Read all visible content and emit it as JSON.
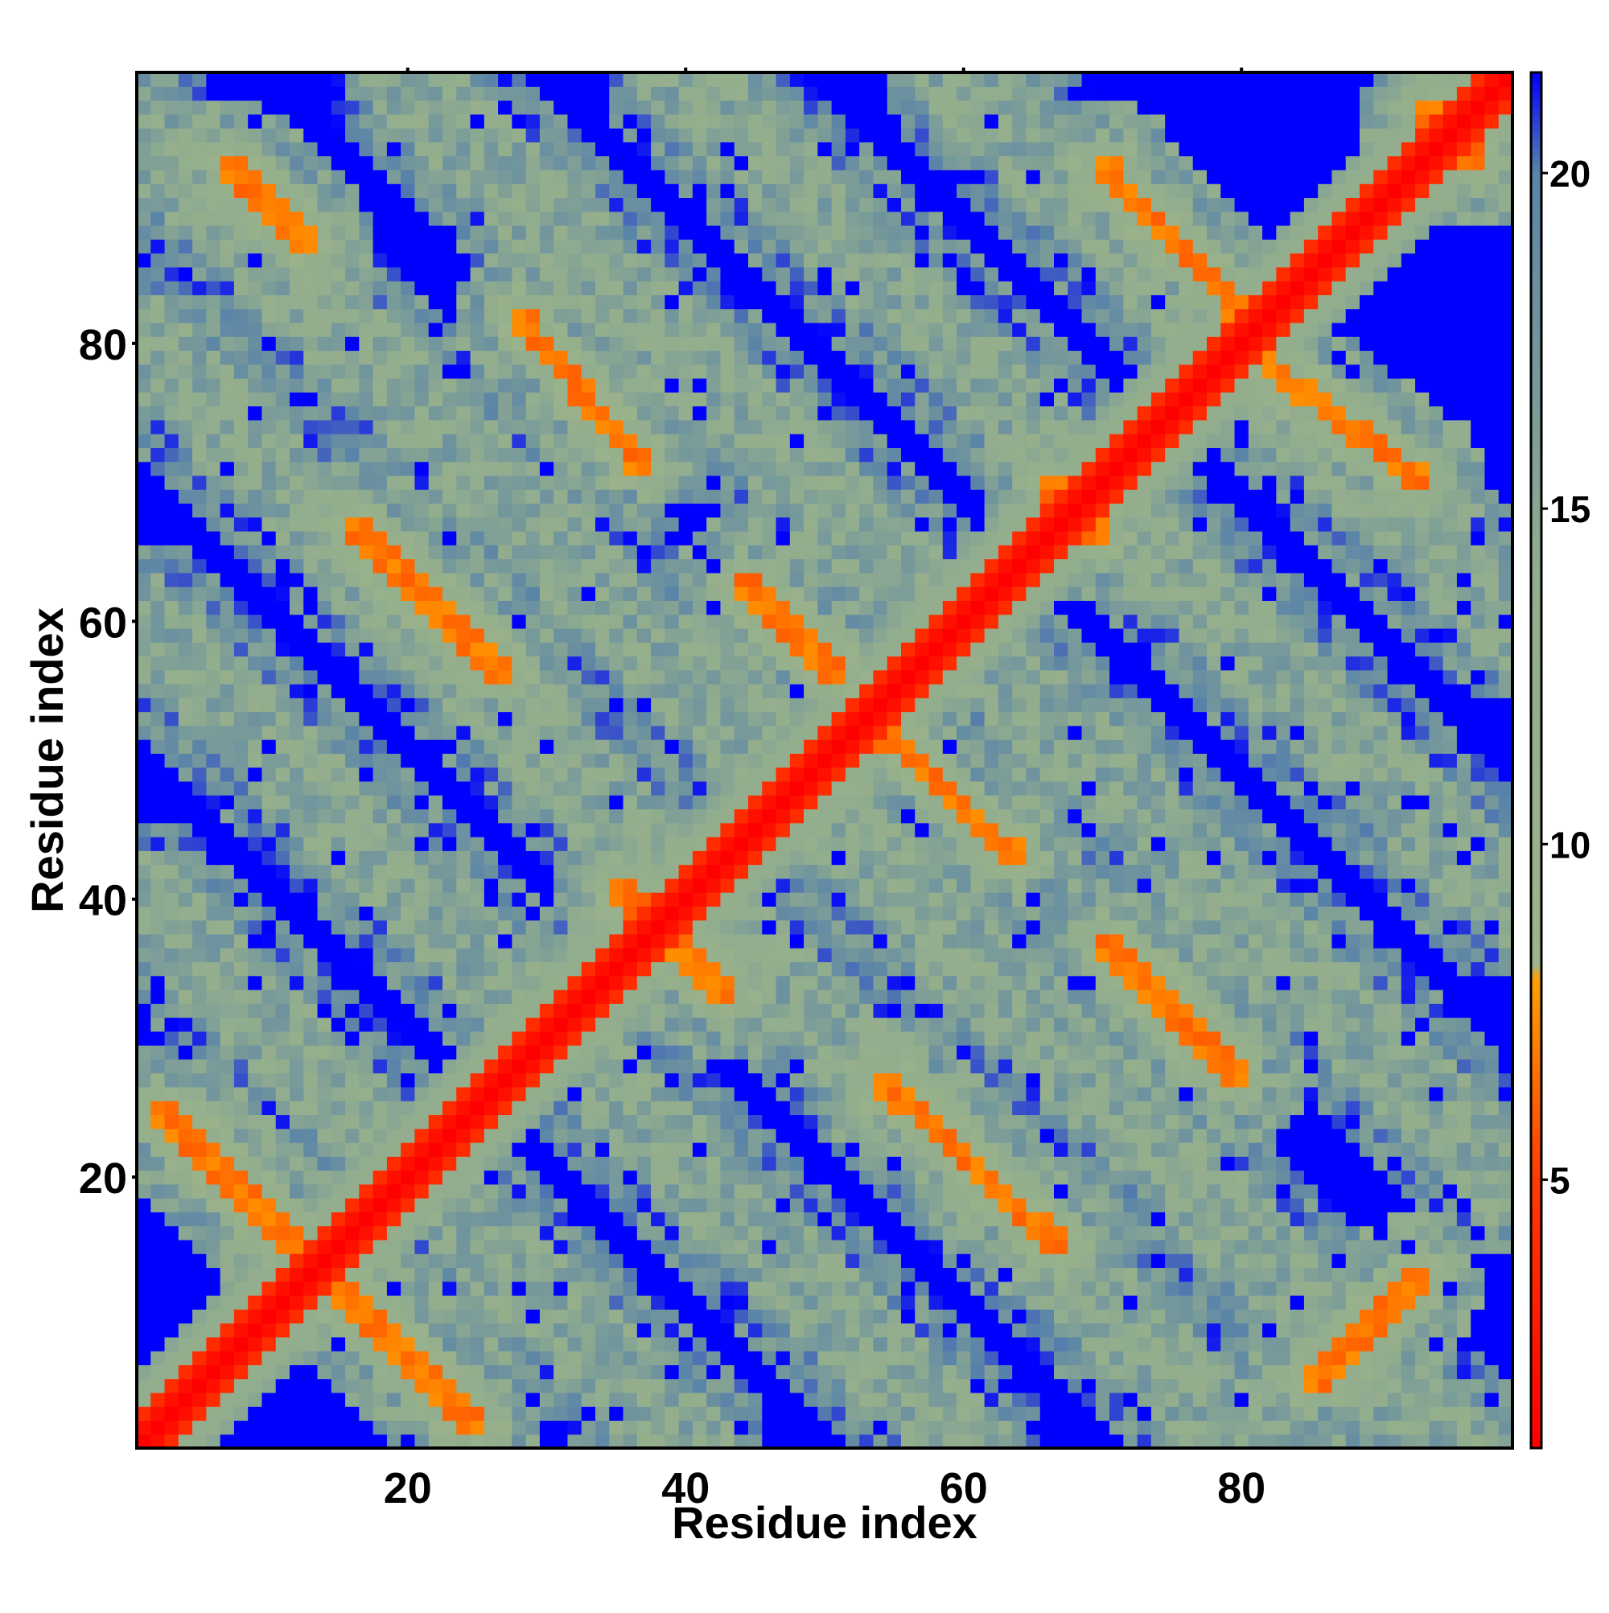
{
  "chart_data": {
    "type": "heatmap",
    "title": "",
    "xlabel": "Residue index",
    "ylabel": "Residue index",
    "x_range": [
      1,
      99
    ],
    "y_range": [
      1,
      99
    ],
    "x_ticks": [
      20,
      40,
      60,
      80
    ],
    "y_ticks": [
      20,
      40,
      60,
      80
    ],
    "colorbar": {
      "range": [
        1,
        21.5
      ],
      "ticks": [
        5,
        10,
        15,
        20
      ],
      "stops": [
        {
          "value": 1.0,
          "color": "#ff0000"
        },
        {
          "value": 5.0,
          "color": "#ff3a00"
        },
        {
          "value": 8.0,
          "color": "#ffa000"
        },
        {
          "value": 8.2,
          "color": "#9cb48a"
        },
        {
          "value": 14.0,
          "color": "#92ad8e"
        },
        {
          "value": 20.0,
          "color": "#5a84a8"
        },
        {
          "value": 21.5,
          "color": "#0000ff"
        }
      ]
    },
    "value_encoding": "Approximate contact-distance map: ~1 on the diagonal, ~6-7 along anti-diagonal contact strands (orange), ~12-19 in the surrounding halo (grey-green), and 21.5 (blue) for distant residue pairs.",
    "pattern": {
      "diagonal_value": 1,
      "strands": [
        {
          "x0": 2,
          "y0": 25,
          "x1": 25,
          "y1": 2
        },
        {
          "x0": 16,
          "y0": 67,
          "x1": 27,
          "y1": 56
        },
        {
          "x0": 7,
          "y0": 93,
          "x1": 13,
          "y1": 87
        },
        {
          "x0": 28,
          "y0": 82,
          "x1": 37,
          "y1": 71
        },
        {
          "x0": 35,
          "y0": 41,
          "x1": 43,
          "y1": 33
        },
        {
          "x0": 44,
          "y0": 63,
          "x1": 51,
          "y1": 56
        },
        {
          "x0": 54,
          "y0": 52,
          "x1": 64,
          "y1": 43
        },
        {
          "x0": 54,
          "y0": 27,
          "x1": 67,
          "y1": 15
        },
        {
          "x0": 66,
          "y0": 70,
          "x1": 70,
          "y1": 66
        },
        {
          "x0": 70,
          "y0": 93,
          "x1": 80,
          "y1": 82
        },
        {
          "x0": 80,
          "y0": 80,
          "x1": 93,
          "y1": 70
        },
        {
          "x0": 70,
          "y0": 37,
          "x1": 80,
          "y1": 27
        },
        {
          "x0": 85,
          "y0": 5,
          "x1": 93,
          "y1": 13
        },
        {
          "x0": 93,
          "y0": 97,
          "x1": 97,
          "y1": 93
        }
      ],
      "halo_bands": [
        {
          "x0": 1,
          "y0": 80,
          "x1": 80,
          "y1": 1
        },
        {
          "x0": 1,
          "y0": 95,
          "x1": 95,
          "y1": 1
        },
        {
          "x0": 1,
          "y0": 60,
          "x1": 60,
          "y1": 1
        },
        {
          "x0": 1,
          "y0": 40,
          "x1": 40,
          "y1": 1
        },
        {
          "x0": 20,
          "y0": 99,
          "x1": 99,
          "y1": 20
        },
        {
          "x0": 40,
          "y0": 99,
          "x1": 99,
          "y1": 40
        },
        {
          "x0": 60,
          "y0": 99,
          "x1": 99,
          "y1": 60
        }
      ]
    }
  }
}
